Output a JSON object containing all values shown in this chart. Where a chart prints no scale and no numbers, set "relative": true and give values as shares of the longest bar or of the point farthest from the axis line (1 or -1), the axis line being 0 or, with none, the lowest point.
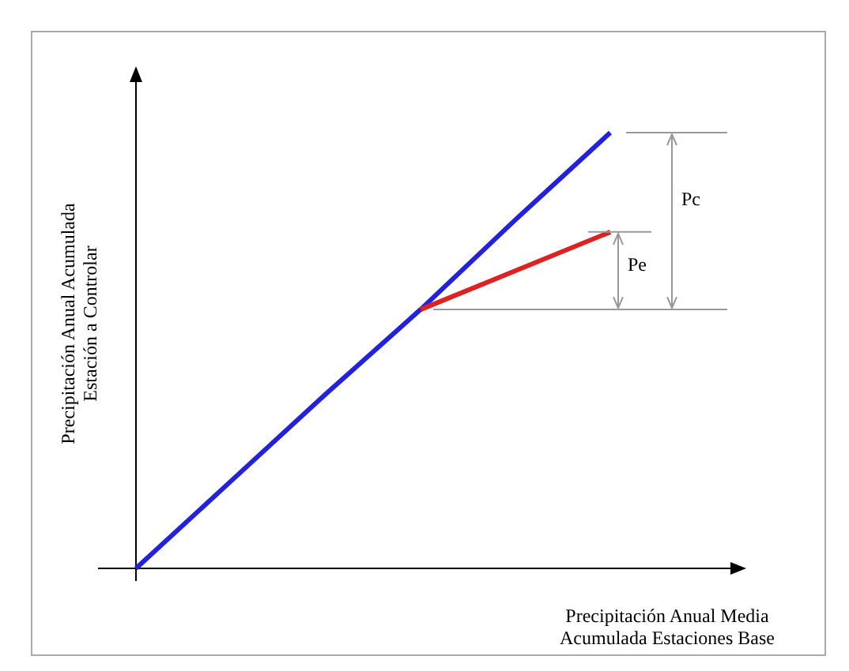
{
  "chart_data": {
    "type": "line",
    "relative": true,
    "xlabel": "Precipitación Anual Media\nAcumulada Estaciones Base",
    "ylabel": "Precipitación Anual Acumulada\nEstación a Controlar",
    "categories": [
      null,
      null,
      null,
      null,
      null,
      null
    ],
    "series": [
      {
        "color": "#2222dd",
        "values": [
          0,
          0.2,
          0.4,
          0.594,
          0.8,
          1
        ]
      },
      {
        "color": "#dd2222",
        "values": [
          null,
          null,
          null,
          0.594,
          0.683,
          0.772
        ]
      }
    ],
    "annotations": [
      "Pc",
      "Pe"
    ],
    "ref_lines": [
      {
        "axis": "y",
        "value": 0.594,
        "color": "#999999"
      }
    ],
    "marker": "none",
    "line_style": "solid"
  }
}
